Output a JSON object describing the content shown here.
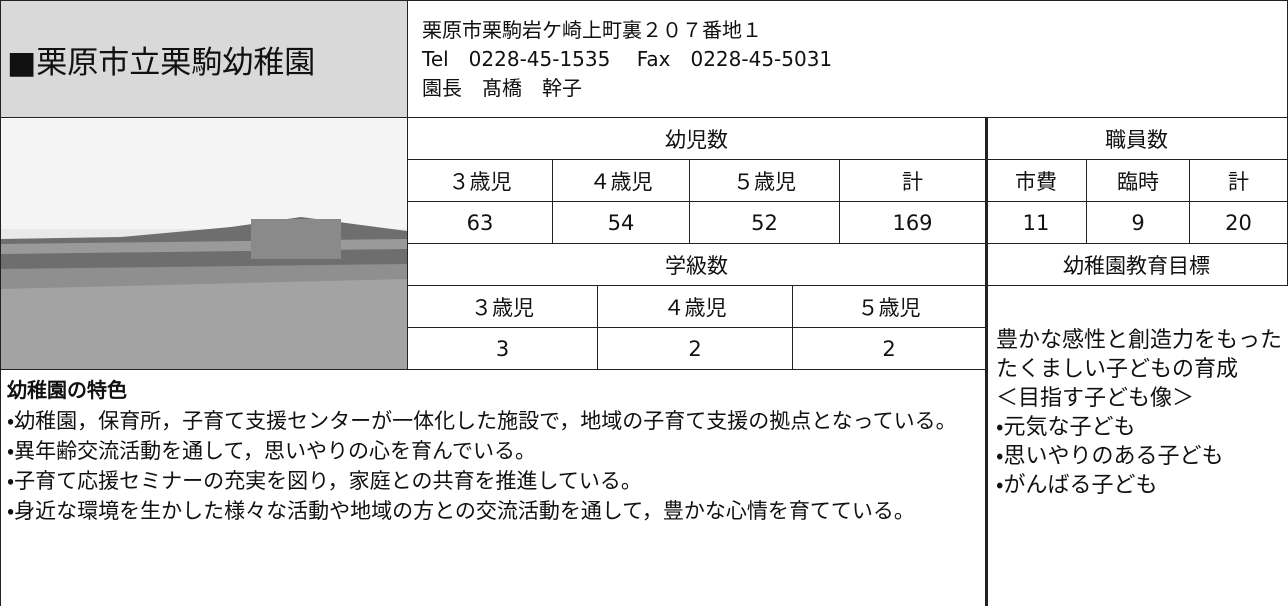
{
  "header": {
    "title": "■栗原市立栗駒幼稚園",
    "address": "栗原市栗駒岩ケ崎上町裏２０７番地１",
    "contact": "Tel　0228-45-1535　 Fax　0228-45-5031",
    "principal": "園長　髙橋　幹子"
  },
  "table": {
    "children_label": "幼児数",
    "staff_label": "職員数",
    "child_headers": [
      "３歳児",
      "４歳児",
      "５歳児",
      "計"
    ],
    "child_counts": [
      63,
      54,
      52,
      169
    ],
    "staff_headers": [
      "市費",
      "臨時",
      "計"
    ],
    "staff_counts": [
      11,
      9,
      20
    ],
    "class_label": "学級数",
    "goals_label": "幼稚園教育目標",
    "class_headers": [
      "３歳児",
      "４歳児",
      "５歳児"
    ],
    "class_counts": [
      3,
      2,
      2
    ]
  },
  "features": {
    "title": "幼稚園の特色",
    "items": [
      "・幼稚園，保育所，子育て支援センターが一体化した施設で，地域の子育て支援の拠点となっている。",
      "・異年齢交流活動を通して，思いやりの心を育んでいる。",
      "・子育て応援セミナーの充実を図り，家庭との共育を推進している。",
      "・身近な環境を生かした様々な活動や地域の方との交流活動を通して，豊かな心情を育てている。"
    ]
  },
  "goals": {
    "text": "豊かな感性と創造力をもったたくましい子どもの育成",
    "subtitle": "＜目指す子ども像＞",
    "items": [
      "・元気な子ども",
      "・思いやりのある子ども",
      "・がんばる子ども"
    ]
  }
}
